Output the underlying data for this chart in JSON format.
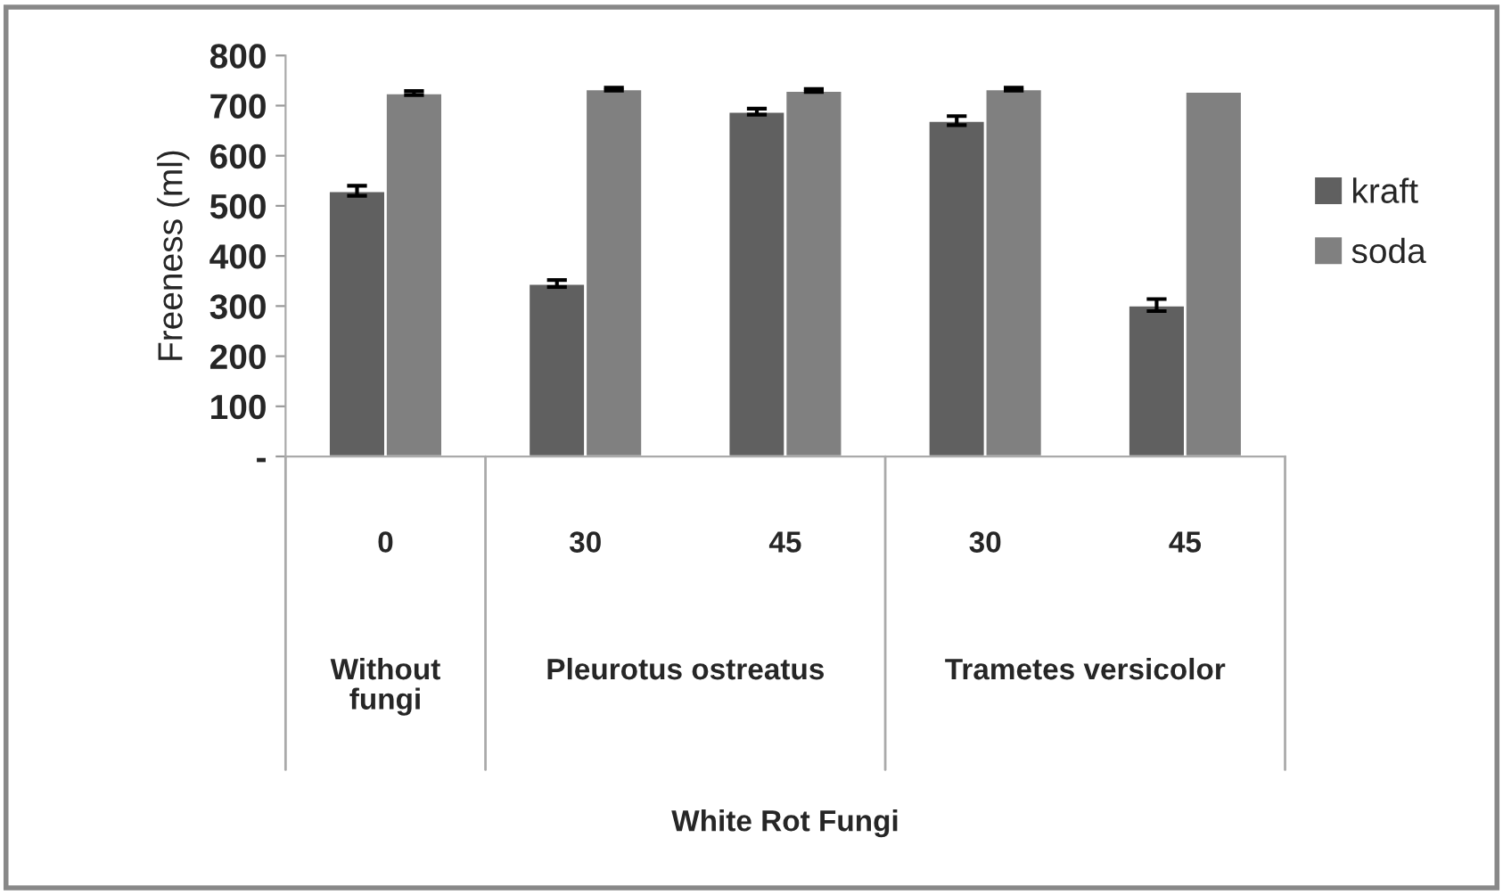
{
  "chart_data": {
    "type": "bar",
    "ylabel": "Freeness (ml)",
    "categories": [
      "0",
      "30",
      "45",
      "30",
      "45"
    ],
    "series": [
      {
        "name": "kraft",
        "color": "#606060",
        "values": [
          530,
          345,
          688,
          670,
          302
        ],
        "errors": [
          10,
          7,
          6,
          9,
          12
        ]
      },
      {
        "name": "soda",
        "color": "#808080",
        "values": [
          725,
          733,
          730,
          733,
          728
        ],
        "errors": [
          4,
          3,
          3,
          3,
          null
        ]
      }
    ],
    "annotations": [
      "Without fungi",
      "Pleurotus ostreatus",
      "Trametes versicolor",
      "White Rot Fungi"
    ],
    "ylim": [
      0,
      800
    ],
    "yticks": [
      {
        "value": 0,
        "label": "-"
      },
      100,
      200,
      300,
      400,
      500,
      600,
      700,
      800
    ],
    "grid": false,
    "legend": "right"
  }
}
